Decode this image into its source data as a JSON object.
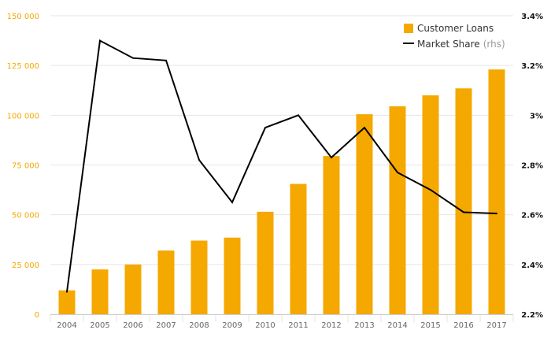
{
  "chart_data": {
    "type": "bar+line",
    "categories": [
      "2004",
      "2005",
      "2006",
      "2007",
      "2008",
      "2009",
      "2010",
      "2011",
      "2012",
      "2013",
      "2014",
      "2015",
      "2016",
      "2017"
    ],
    "series": [
      {
        "name": "Customer Loans",
        "type": "bar",
        "axis": "left",
        "color": "#f5a800",
        "values": [
          12000,
          22500,
          25000,
          32000,
          37000,
          38500,
          51500,
          65500,
          79500,
          100500,
          104500,
          110000,
          113500,
          123000
        ]
      },
      {
        "name": "Market Share",
        "name_suffix": "(rhs)",
        "type": "line",
        "axis": "right",
        "color": "#000000",
        "values": [
          2.29,
          3.3,
          3.23,
          3.22,
          2.82,
          2.65,
          2.95,
          3.0,
          2.83,
          2.95,
          2.77,
          2.7,
          2.61,
          2.605
        ]
      }
    ],
    "y_left": {
      "ylim": [
        0,
        150000
      ],
      "ticks": [
        0,
        25000,
        50000,
        75000,
        100000,
        125000,
        150000
      ],
      "tick_labels": [
        "0",
        "25 000",
        "50 000",
        "75 000",
        "100 000",
        "125 000",
        "150 000"
      ],
      "color": "#f5a800"
    },
    "y_right": {
      "ylim": [
        2.2,
        3.4
      ],
      "ticks": [
        2.2,
        2.4,
        2.6,
        2.8,
        3.0,
        3.2,
        3.4
      ],
      "tick_labels": [
        "2.2%",
        "2.4%",
        "2.6%",
        "2.8%",
        "3%",
        "3.2%",
        "3.4%"
      ],
      "color": "#111111"
    },
    "grid": true,
    "legend_position": "top-right",
    "colors": {
      "grid": "#e6e6e6",
      "axis_text_x": "#666666",
      "legend_text": "#333333",
      "legend_suffix": "#999999"
    }
  }
}
